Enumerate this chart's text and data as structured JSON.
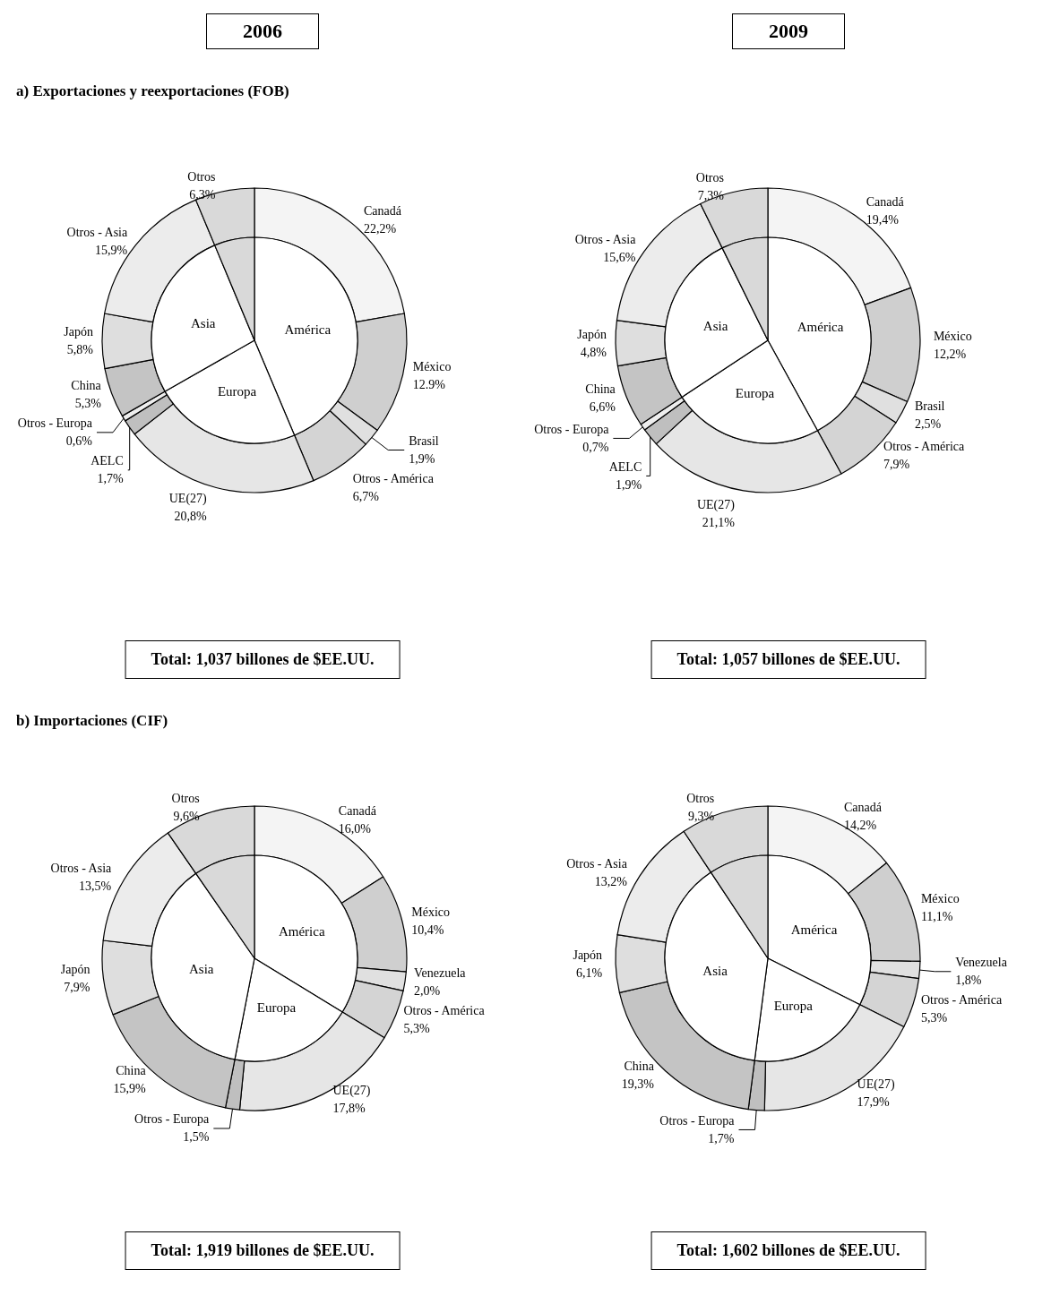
{
  "chart_data": [
    {
      "type": "donut",
      "title": "2006",
      "subtitle": "a)  Exportaciones y reexportaciones (FOB)",
      "annotations": [
        "Total:  1,037 billones de $EE.UU."
      ],
      "categories": [
        "Canadá",
        "México",
        "Brasil",
        "Otros - América",
        "UE(27)",
        "AELC",
        "Otros - Europa",
        "China",
        "Japón",
        "Otros - Asia",
        "Otros"
      ],
      "values": [
        22.2,
        12.9,
        1.9,
        6.7,
        20.8,
        1.7,
        0.6,
        5.3,
        5.8,
        15.9,
        6.3
      ],
      "value_labels": [
        "22,2%",
        "12.9%",
        "1,9%",
        "6,7%",
        "20,8%",
        "1,7%",
        "0,6%",
        "5,3%",
        "5,8%",
        "15,9%",
        "6,3%"
      ],
      "colors": [
        "#f4f4f4",
        "#cfcfcf",
        "#e0e0e0",
        "#d4d4d4",
        "#e6e6e6",
        "#bfbfbf",
        "#eeeeee",
        "#c4c4c4",
        "#dedede",
        "#ececec",
        "#d9d9d9"
      ]
    },
    {
      "type": "pie",
      "categories": [
        "América",
        "Europa",
        "Asia",
        null
      ],
      "values": [
        43.7,
        23.1,
        27.0,
        6.3
      ],
      "colors": [
        "#ffffff",
        "#ffffff",
        "#ffffff",
        "#d9d9d9"
      ]
    },
    {
      "type": "donut",
      "title": "2009",
      "annotations": [
        "Total: 1,057 billones de $EE.UU."
      ],
      "categories": [
        "Canadá",
        "México",
        "Brasil",
        "Otros - América",
        "UE(27)",
        "AELC",
        "Otros - Europa",
        "China",
        "Japón",
        "Otros - Asia",
        "Otros"
      ],
      "values": [
        19.4,
        12.2,
        2.5,
        7.9,
        21.1,
        1.9,
        0.7,
        6.6,
        4.8,
        15.6,
        7.3
      ],
      "value_labels": [
        "19,4%",
        "12,2%",
        "2,5%",
        "7,9%",
        "21,1%",
        "1,9%",
        "0,7%",
        "6,6%",
        "4,8%",
        "15,6%",
        "7,3%"
      ],
      "colors": [
        "#f4f4f4",
        "#cfcfcf",
        "#e0e0e0",
        "#d4d4d4",
        "#e6e6e6",
        "#bfbfbf",
        "#eeeeee",
        "#c4c4c4",
        "#dedede",
        "#ececec",
        "#d9d9d9"
      ]
    },
    {
      "type": "pie",
      "categories": [
        "América",
        "Europa",
        "Asia",
        null
      ],
      "values": [
        42.0,
        23.7,
        27.0,
        7.3
      ],
      "colors": [
        "#ffffff",
        "#ffffff",
        "#ffffff",
        "#d9d9d9"
      ]
    },
    {
      "type": "donut",
      "subtitle": "b)  Importaciones (CIF)",
      "annotations": [
        "Total: 1,919 billones de $EE.UU."
      ],
      "categories": [
        "Canadá",
        "México",
        "Venezuela",
        "Otros - América",
        "UE(27)",
        "Otros - Europa",
        "China",
        "Japón",
        "Otros - Asia",
        "Otros"
      ],
      "values": [
        16.0,
        10.4,
        2.0,
        5.3,
        17.8,
        1.5,
        15.9,
        7.9,
        13.5,
        9.6
      ],
      "value_labels": [
        "16,0%",
        "10,4%",
        "2,0%",
        "5,3%",
        "17,8%",
        "1,5%",
        "15,9%",
        "7,9%",
        "13,5%",
        "9,6%"
      ],
      "colors": [
        "#f4f4f4",
        "#cfcfcf",
        "#e0e0e0",
        "#d4d4d4",
        "#e6e6e6",
        "#bfbfbf",
        "#c4c4c4",
        "#dedede",
        "#ececec",
        "#d9d9d9"
      ]
    },
    {
      "type": "pie",
      "categories": [
        "América",
        "Europa",
        "Asia",
        null
      ],
      "values": [
        33.7,
        19.3,
        37.3,
        9.6
      ],
      "colors": [
        "#ffffff",
        "#ffffff",
        "#ffffff",
        "#d9d9d9"
      ]
    },
    {
      "type": "donut",
      "annotations": [
        "Total: 1,602 billones de $EE.UU."
      ],
      "categories": [
        "Canadá",
        "México",
        "Venezuela",
        "Otros - América",
        "UE(27)",
        "Otros - Europa",
        "China",
        "Japón",
        "Otros - Asia",
        "Otros"
      ],
      "values": [
        14.2,
        11.1,
        1.8,
        5.3,
        17.9,
        1.7,
        19.3,
        6.1,
        13.2,
        9.3
      ],
      "value_labels": [
        "14,2%",
        "11,1%",
        "1,8%",
        "5,3%",
        "17,9%",
        "1,7%",
        "19,3%",
        "6,1%",
        "13,2%",
        "9,3%"
      ],
      "colors": [
        "#f4f4f4",
        "#cfcfcf",
        "#e0e0e0",
        "#d4d4d4",
        "#e6e6e6",
        "#bfbfbf",
        "#c4c4c4",
        "#dedede",
        "#ececec",
        "#d9d9d9"
      ]
    },
    {
      "type": "pie",
      "categories": [
        "América",
        "Europa",
        "Asia",
        null
      ],
      "values": [
        32.4,
        19.6,
        38.6,
        9.3
      ],
      "colors": [
        "#ffffff",
        "#ffffff",
        "#ffffff",
        "#d9d9d9"
      ]
    }
  ]
}
